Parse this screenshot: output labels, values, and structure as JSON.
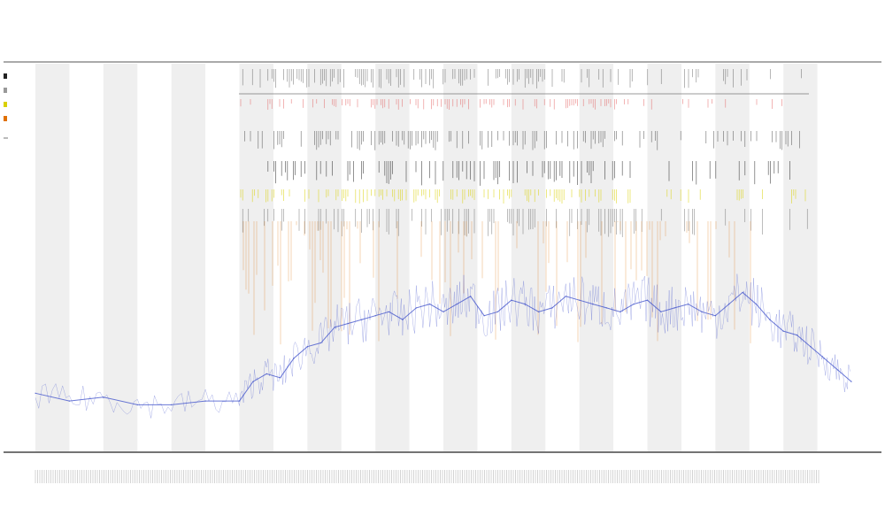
{
  "chart_data": {
    "type": "line",
    "title_lines": [
      "",
      "",
      ""
    ],
    "xlabel": "",
    "ylabel": "",
    "track_labels": [
      "",
      ""
    ],
    "legend_entries": [
      {
        "name": "",
        "color": "#222222"
      },
      {
        "name": "",
        "color": "#999999"
      },
      {
        "name": "",
        "color": "#d9d000"
      },
      {
        "name": "",
        "color": "#e07000"
      }
    ],
    "band_count": 24,
    "x_range": [
      0,
      1200
    ],
    "y_range": [
      0,
      100
    ],
    "grid": false,
    "legend_position": "left",
    "series": [
      {
        "color": "#4455cc",
        "x": [
          0,
          50,
          100,
          150,
          200,
          250,
          300,
          320,
          340,
          360,
          380,
          400,
          420,
          440,
          460,
          480,
          500,
          520,
          540,
          560,
          580,
          600,
          620,
          640,
          660,
          680,
          700,
          720,
          740,
          760,
          780,
          800,
          820,
          840,
          860,
          880,
          900,
          920,
          940,
          960,
          980,
          1000,
          1020,
          1040,
          1060,
          1080,
          1100,
          1120,
          1140,
          1160,
          1180,
          1200
        ],
        "values": [
          15,
          13,
          14,
          12,
          12,
          13,
          13,
          18,
          20,
          19,
          24,
          27,
          28,
          32,
          33,
          34,
          35,
          36,
          34,
          37,
          38,
          36,
          38,
          40,
          35,
          36,
          39,
          38,
          36,
          37,
          40,
          39,
          38,
          37,
          36,
          38,
          39,
          36,
          37,
          38,
          36,
          35,
          38,
          41,
          38,
          34,
          31,
          30,
          27,
          24,
          21,
          18
        ]
      }
    ]
  }
}
